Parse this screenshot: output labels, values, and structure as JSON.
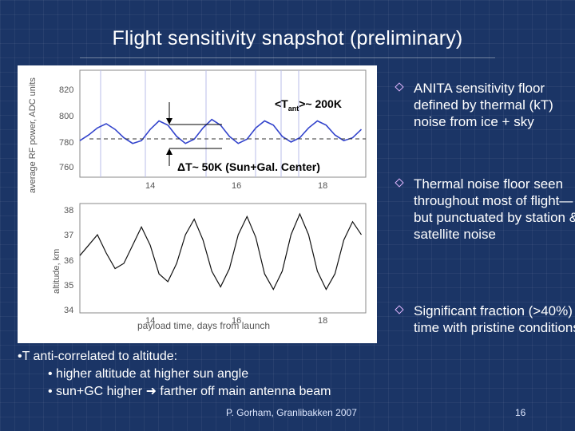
{
  "slide": {
    "title": "Flight sensitivity snapshot (preliminary)",
    "footer": "P. Gorham, Granlibakken 2007",
    "page_number": "16"
  },
  "figure": {
    "top_panel": {
      "ylabel": "average RF power, ADC units",
      "yticks": [
        "820",
        "800",
        "780",
        "760"
      ],
      "xticks": [
        "14",
        "16",
        "18"
      ],
      "annotation_tant_a": "<T",
      "annotation_tant_sub": "ant",
      "annotation_tant_b": ">~ 200K",
      "annotation_delta": "ΔT~ 50K (Sun+Gal. Center)"
    },
    "bottom_panel": {
      "ylabel": "altitude, km",
      "yticks": [
        "38",
        "37",
        "36",
        "35",
        "34"
      ],
      "xticks": [
        "14",
        "16",
        "18"
      ],
      "xlabel": "payload time, days from launch"
    }
  },
  "bullets": [
    {
      "text": "ANITA sensitivity floor defined by thermal (kT) noise from ice + sky"
    },
    {
      "text": "Thermal noise floor seen throughout most of flight—but punctuated by station & satellite noise"
    },
    {
      "text": "Significant fraction (>40%) of time with pristine conditions"
    }
  ],
  "note": {
    "line1": "•T anti-correlated to altitude:",
    "line2": "• higher altitude at higher sun angle",
    "line3a": "• sun+GC higher ",
    "line3b": " farther off main antenna beam"
  },
  "chart_data": [
    {
      "type": "line",
      "title": "",
      "xlabel": "",
      "ylabel": "average RF power, ADC units",
      "xlim": [
        12.6,
        19.1
      ],
      "ylim": [
        752,
        828
      ],
      "series": [
        {
          "x": [
            12.6,
            12.8,
            13.0,
            13.2,
            13.4,
            13.6,
            13.8,
            14.0,
            14.2,
            14.4,
            14.6,
            14.8,
            15.0,
            15.2,
            15.4,
            15.6,
            15.8,
            16.0,
            16.2,
            16.4,
            16.6,
            16.8,
            17.0,
            17.2,
            17.4,
            17.6,
            17.8,
            18.0,
            18.2,
            18.4,
            18.6,
            18.8,
            19.0
          ],
          "y": [
            778,
            782,
            787,
            790,
            786,
            780,
            776,
            778,
            786,
            792,
            789,
            781,
            776,
            779,
            787,
            793,
            789,
            781,
            776,
            779,
            787,
            792,
            789,
            781,
            777,
            780,
            787,
            792,
            789,
            782,
            778,
            780,
            786
          ]
        }
      ]
    },
    {
      "type": "line",
      "title": "",
      "xlabel": "payload time, days from launch",
      "ylabel": "altitude, km",
      "xlim": [
        12.6,
        19.1
      ],
      "ylim": [
        34,
        38.2
      ],
      "series": [
        {
          "x": [
            12.6,
            12.8,
            13.0,
            13.2,
            13.4,
            13.6,
            13.8,
            14.0,
            14.2,
            14.4,
            14.6,
            14.8,
            15.0,
            15.2,
            15.4,
            15.6,
            15.8,
            16.0,
            16.2,
            16.4,
            16.6,
            16.8,
            17.0,
            17.2,
            17.4,
            17.6,
            17.8,
            18.0,
            18.2,
            18.4,
            18.6,
            18.8,
            19.0
          ],
          "y": [
            36.2,
            36.6,
            37.0,
            36.3,
            35.7,
            35.9,
            36.6,
            37.3,
            36.6,
            35.5,
            35.2,
            35.9,
            37.0,
            37.6,
            36.8,
            35.6,
            35.0,
            35.7,
            37.0,
            37.7,
            36.9,
            35.5,
            34.9,
            35.6,
            37.0,
            37.8,
            37.0,
            35.6,
            34.9,
            35.5,
            36.8,
            37.5,
            37.0
          ]
        }
      ]
    }
  ]
}
